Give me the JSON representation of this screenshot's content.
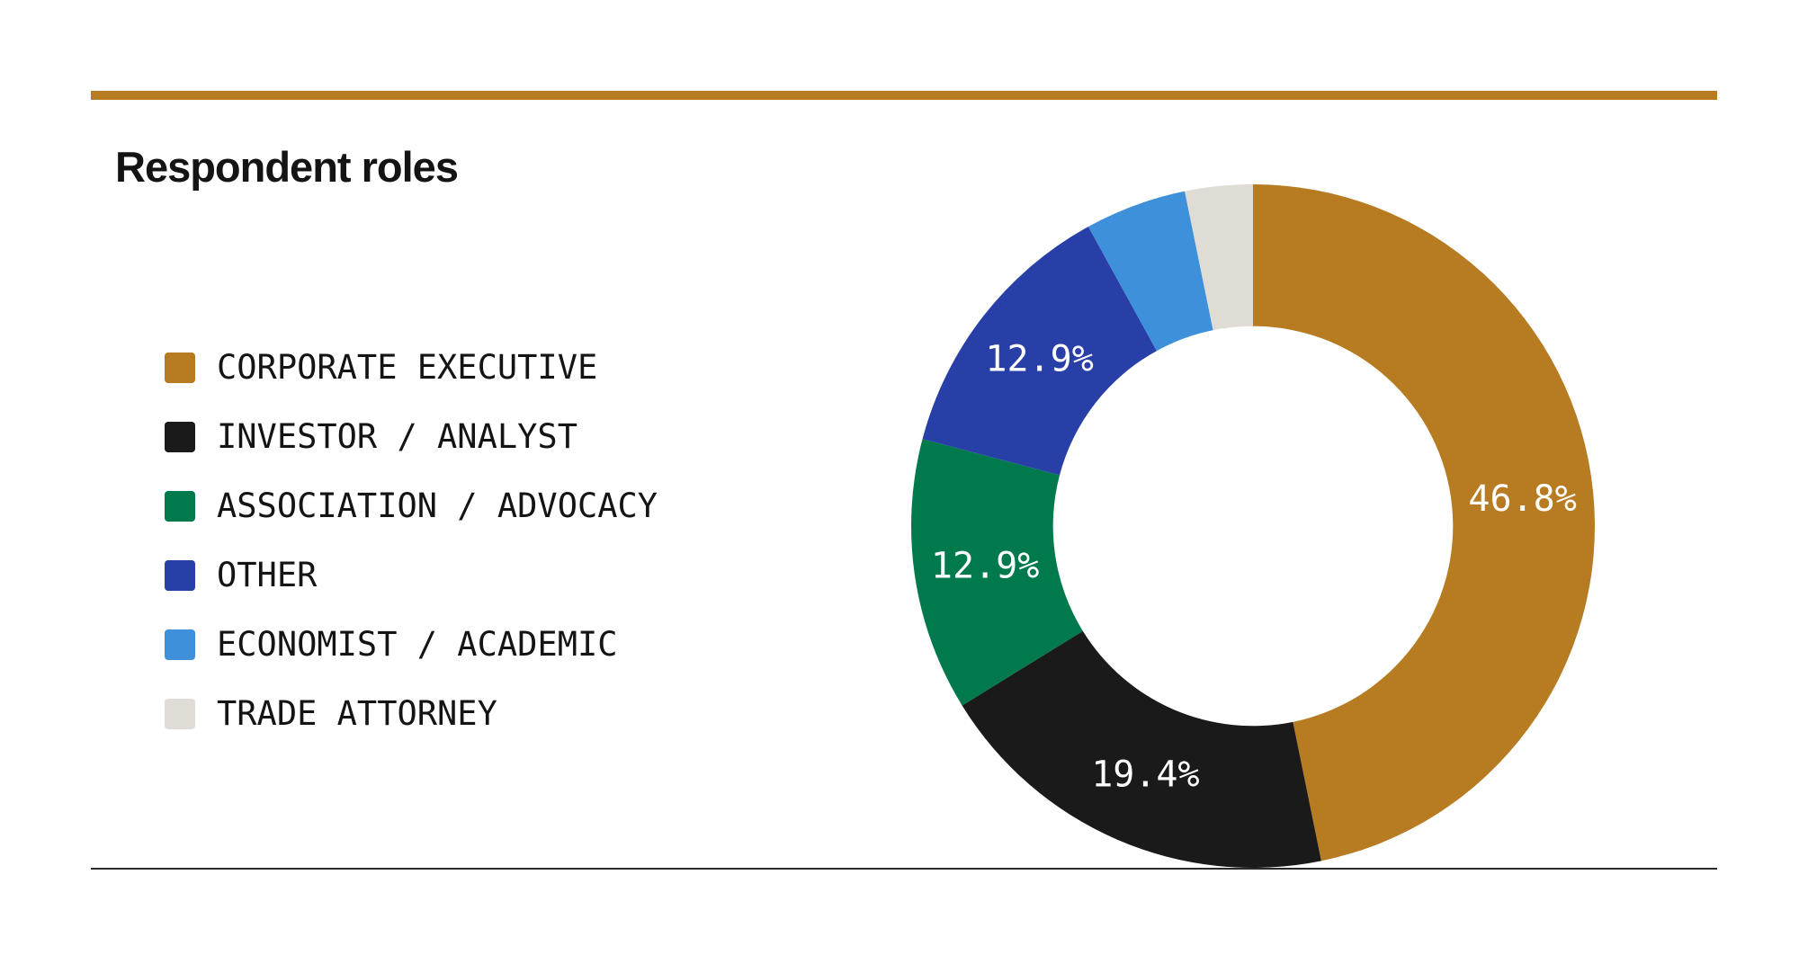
{
  "chart_data": {
    "type": "pie",
    "title": "Respondent roles",
    "categories": [
      "CORPORATE EXECUTIVE",
      "INVESTOR / ANALYST",
      "ASSOCIATION / ADVOCACY",
      "OTHER",
      "ECONOMIST / ACADEMIC",
      "TRADE ATTORNEY"
    ],
    "values": [
      46.8,
      19.4,
      12.9,
      12.9,
      4.8,
      3.2
    ],
    "value_labels": [
      "46.8%",
      "19.4%",
      "12.9%",
      "12.9%",
      "",
      ""
    ],
    "colors": [
      "#b77b22",
      "#1a1a1a",
      "#007a4d",
      "#283fa8",
      "#3f90db",
      "#dfdcd5"
    ],
    "legend": "left",
    "hole_ratio": 0.585
  }
}
